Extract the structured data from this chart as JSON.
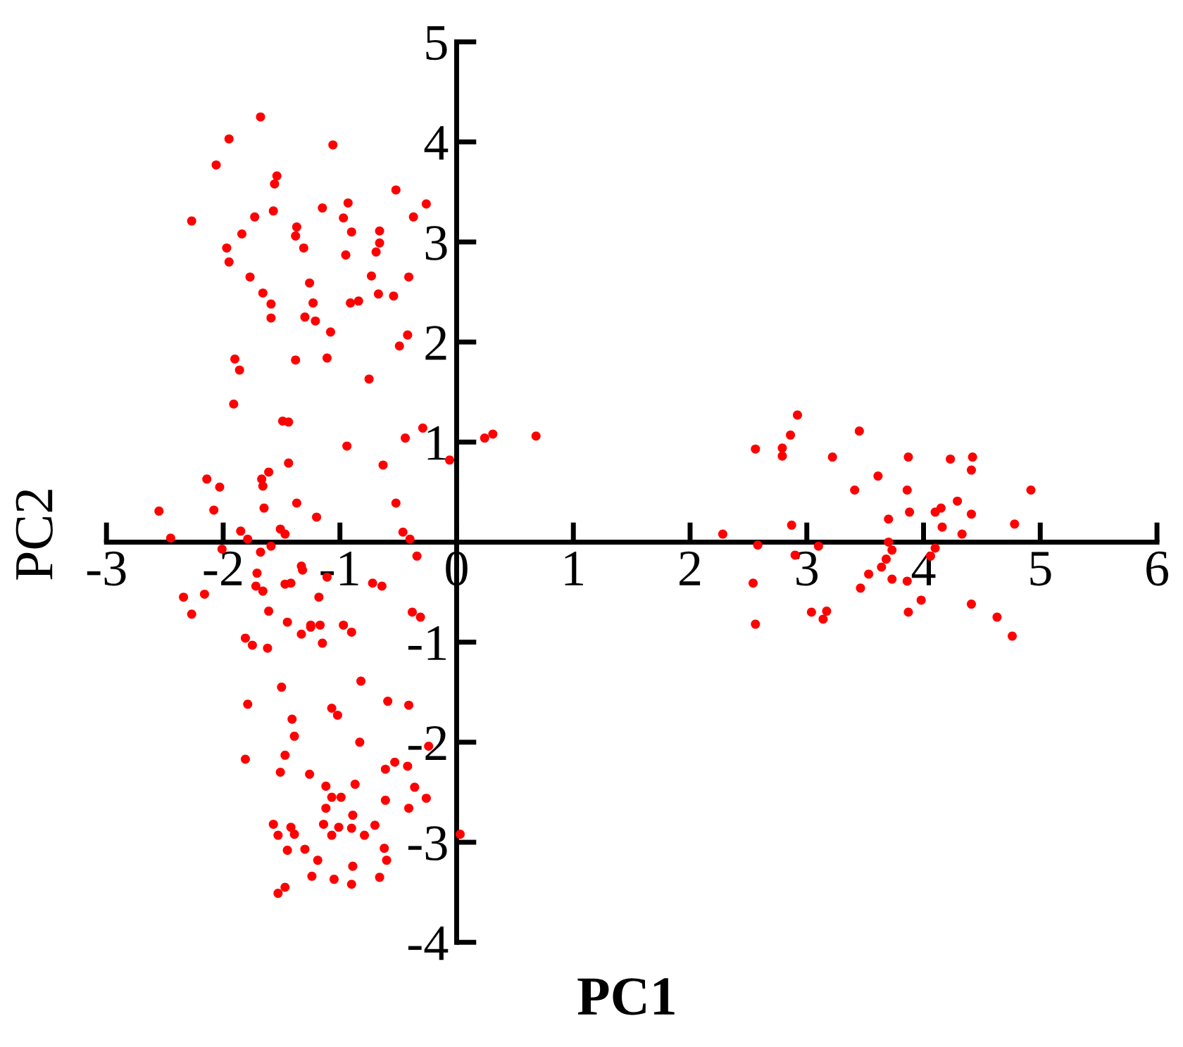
{
  "chart_data": {
    "type": "scatter",
    "xlabel": "PC1",
    "ylabel": "PC2",
    "xlim": [
      -3,
      6
    ],
    "ylim": [
      -4,
      5
    ],
    "xticks": [
      -3,
      -2,
      -1,
      0,
      1,
      2,
      3,
      4,
      5,
      6
    ],
    "yticks": [
      -4,
      -3,
      -2,
      -1,
      1,
      2,
      3,
      4,
      5
    ],
    "marker": "circle",
    "grid": false,
    "series": [
      {
        "color": "#ff0000",
        "x": [
          -1.68,
          -1.95,
          -1.06,
          -2.06,
          -1.54,
          -1.56,
          -0.52,
          -0.26,
          -0.93,
          -1.15,
          -1.57,
          -1.73,
          -2.27,
          -0.37,
          -0.97,
          -1.37,
          -1.84,
          -0.9,
          -0.66,
          -1.38,
          -0.66,
          -1.97,
          -1.31,
          -0.69,
          -0.95,
          -1.95,
          -1.77,
          -0.73,
          -0.41,
          -1.66,
          -1.26,
          -0.67,
          -0.54,
          -1.59,
          -1.23,
          -0.91,
          -0.84,
          -1.59,
          -1.3,
          -1.21,
          -1.08,
          -0.42,
          -0.49,
          -1.9,
          -1.38,
          -1.11,
          -1.86,
          -0.75,
          -1.91,
          -1.49,
          -1.44,
          -0.29,
          -0.44,
          -0.94,
          0.24,
          0.31,
          0.68,
          -0.06,
          -0.63,
          -1.44,
          -1.61,
          -1.67,
          -1.66,
          -2.14,
          -2.03,
          -2.55,
          -2.08,
          -1.65,
          -1.37,
          -1.2,
          -0.52,
          -2.45,
          -1.85,
          -1.79,
          -1.51,
          -1.47,
          -0.46,
          -0.4,
          -2.01,
          -1.68,
          -1.59,
          -0.34,
          -1.33,
          -1.32,
          -1.71,
          -1.72,
          -1.66,
          -1.47,
          -1.42,
          -1.11,
          -1.18,
          -0.72,
          -0.64,
          -2.34,
          -2.16,
          -2.27,
          -1.61,
          -0.38,
          -0.31,
          -1.45,
          -1.25,
          -1.17,
          -0.97,
          -1.81,
          -1.75,
          -1.62,
          -1.33,
          -1.25,
          -1.15,
          -0.9,
          -1.5,
          -0.82,
          -1.79,
          -1.07,
          -1.02,
          -0.59,
          -0.41,
          -1.41,
          -1.39,
          -0.83,
          -0.24,
          -1.81,
          -1.47,
          -1.51,
          -1.26,
          -0.61,
          -0.53,
          -0.42,
          -1.12,
          -0.87,
          -0.36,
          -0.26,
          -1.07,
          -0.99,
          -0.61,
          -1.12,
          -0.41,
          -0.89,
          -1.57,
          -1.42,
          -1.14,
          -1.01,
          -0.9,
          -0.7,
          -1.53,
          -1.39,
          -1.07,
          -0.79,
          0.03,
          -1.45,
          -1.3,
          -0.62,
          -1.19,
          -0.6,
          -0.89,
          -1.24,
          -1.05,
          -0.9,
          -0.66,
          -1.53,
          -1.47,
          2.92,
          3.45,
          2.86,
          2.56,
          2.79,
          2.79,
          3.22,
          3.87,
          4.23,
          4.42,
          4.41,
          3.61,
          3.41,
          3.86,
          4.92,
          4.29,
          3.88,
          4.1,
          4.15,
          4.41,
          3.7,
          4.78,
          2.87,
          4.16,
          2.28,
          4.33,
          2.58,
          3.1,
          3.7,
          3.73,
          2.9,
          4.1,
          4.06,
          3.68,
          3.64,
          3.53,
          3.73,
          2.54,
          3.86,
          3.46,
          3.98,
          4.41,
          3.04,
          3.17,
          3.14,
          3.87,
          4.63,
          2.56,
          4.76
        ],
        "values": [
          4.25,
          4.03,
          3.97,
          3.77,
          3.66,
          3.58,
          3.52,
          3.38,
          3.39,
          3.34,
          3.31,
          3.25,
          3.21,
          3.25,
          3.24,
          3.15,
          3.08,
          3.1,
          3.11,
          3.06,
          2.99,
          2.94,
          2.94,
          2.9,
          2.87,
          2.8,
          2.65,
          2.66,
          2.65,
          2.49,
          2.59,
          2.48,
          2.46,
          2.38,
          2.39,
          2.39,
          2.41,
          2.24,
          2.25,
          2.21,
          2.1,
          2.07,
          1.96,
          1.83,
          1.82,
          1.84,
          1.72,
          1.63,
          1.38,
          1.21,
          1.2,
          1.14,
          1.04,
          0.96,
          1.04,
          1.08,
          1.06,
          0.82,
          0.77,
          0.79,
          0.7,
          0.63,
          0.56,
          0.63,
          0.55,
          0.31,
          0.32,
          0.34,
          0.39,
          0.25,
          0.39,
          0.04,
          0.11,
          0.03,
          0.13,
          0.08,
          0.1,
          0.03,
          -0.07,
          -0.1,
          -0.04,
          -0.14,
          -0.24,
          -0.28,
          -0.31,
          -0.44,
          -0.49,
          -0.42,
          -0.41,
          -0.35,
          -0.55,
          -0.41,
          -0.44,
          -0.55,
          -0.52,
          -0.72,
          -0.69,
          -0.7,
          -0.75,
          -0.8,
          -0.83,
          -0.83,
          -0.83,
          -0.96,
          -1.03,
          -1.06,
          -0.92,
          -0.85,
          -1.01,
          -0.9,
          -1.45,
          -1.39,
          -1.62,
          -1.66,
          -1.73,
          -1.59,
          -1.63,
          -1.77,
          -1.94,
          -2.0,
          -2.04,
          -2.17,
          -2.13,
          -2.3,
          -2.32,
          -2.27,
          -2.2,
          -2.24,
          -2.44,
          -2.42,
          -2.45,
          -2.56,
          -2.55,
          -2.55,
          -2.58,
          -2.66,
          -2.66,
          -2.73,
          -2.82,
          -2.85,
          -2.82,
          -2.85,
          -2.86,
          -2.83,
          -2.93,
          -2.92,
          -2.93,
          -2.93,
          -2.92,
          -3.08,
          -3.07,
          -3.06,
          -3.18,
          -3.18,
          -3.24,
          -3.34,
          -3.37,
          -3.42,
          -3.35,
          -3.51,
          -3.45,
          1.27,
          1.11,
          1.07,
          0.93,
          0.94,
          0.86,
          0.85,
          0.85,
          0.83,
          0.85,
          0.72,
          0.66,
          0.52,
          0.52,
          0.52,
          0.41,
          0.3,
          0.3,
          0.34,
          0.28,
          0.23,
          0.18,
          0.17,
          0.15,
          0.08,
          0.08,
          -0.03,
          -0.04,
          0.0,
          -0.08,
          -0.13,
          -0.06,
          -0.14,
          -0.17,
          -0.25,
          -0.32,
          -0.37,
          -0.41,
          -0.39,
          -0.46,
          -0.58,
          -0.62,
          -0.7,
          -0.69,
          -0.77,
          -0.7,
          -0.75,
          -0.82,
          -0.94
        ]
      }
    ]
  }
}
